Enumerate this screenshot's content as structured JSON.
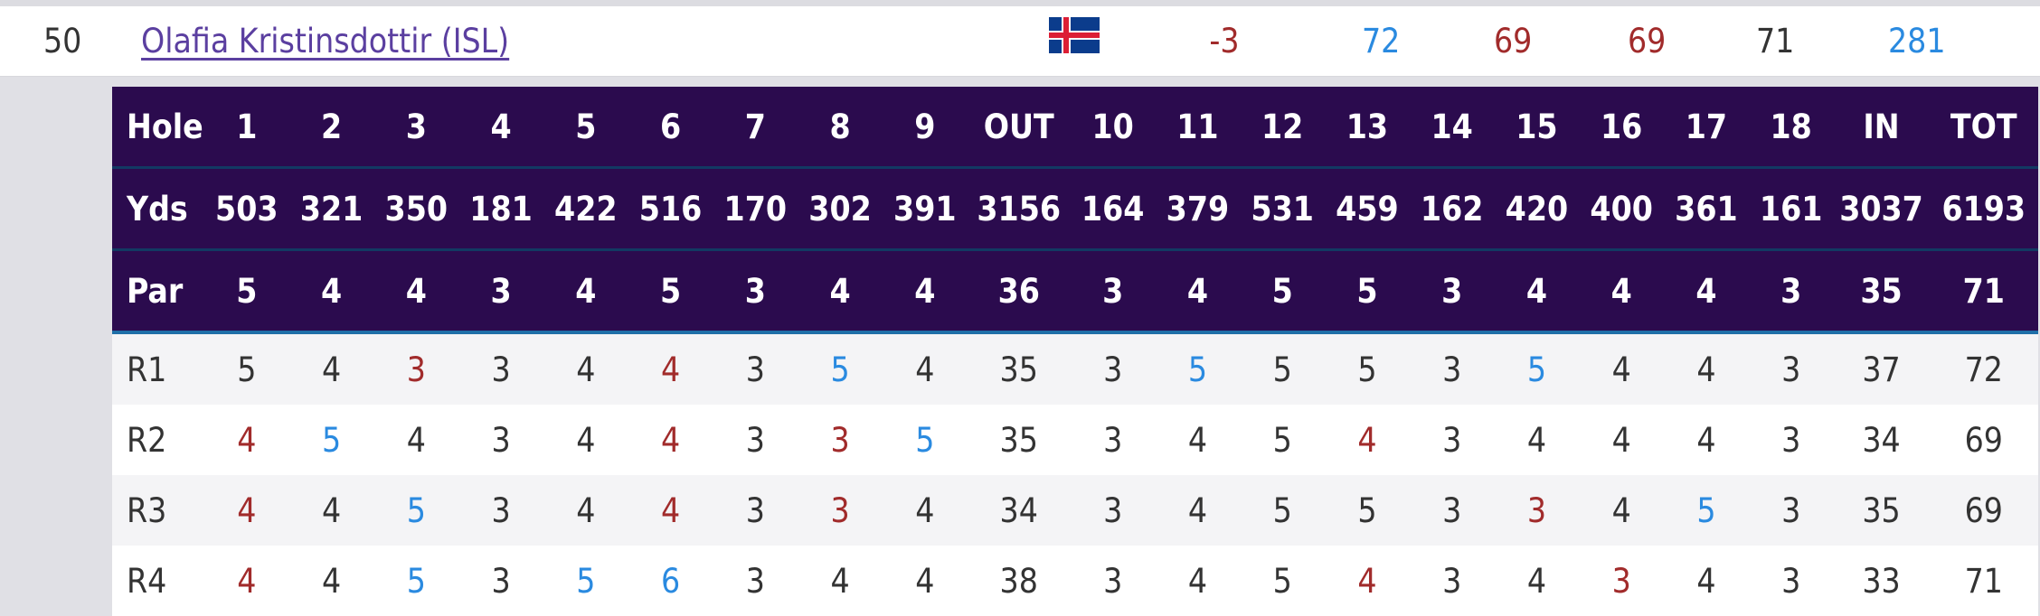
{
  "player": {
    "position": "50",
    "name": "Olafia Kristinsdottir (ISL)",
    "flag_icon": "iceland-flag-icon",
    "to_par": "-3",
    "r1": "72",
    "r2": "69",
    "r3": "69",
    "r4": "71",
    "total": "281"
  },
  "colors": {
    "header_bg": "#2b0b4e",
    "birdie": "#a12b2b",
    "bogey": "#2a8ae0",
    "par": "#333333",
    "link": "#5b3fa0"
  },
  "scorecard": {
    "hole_label": "Hole",
    "yds_label": "Yds",
    "par_label": "Par",
    "columns": [
      "1",
      "2",
      "3",
      "4",
      "5",
      "6",
      "7",
      "8",
      "9",
      "OUT",
      "10",
      "11",
      "12",
      "13",
      "14",
      "15",
      "16",
      "17",
      "18",
      "IN",
      "TOT"
    ],
    "yards": [
      "503",
      "321",
      "350",
      "181",
      "422",
      "516",
      "170",
      "302",
      "391",
      "3156",
      "164",
      "379",
      "531",
      "459",
      "162",
      "420",
      "400",
      "361",
      "161",
      "3037",
      "6193"
    ],
    "par": [
      "5",
      "4",
      "4",
      "3",
      "4",
      "5",
      "3",
      "4",
      "4",
      "36",
      "3",
      "4",
      "5",
      "5",
      "3",
      "4",
      "4",
      "4",
      "3",
      "35",
      "71"
    ],
    "rounds": [
      {
        "label": "R1",
        "scores": [
          "5",
          "4",
          "3",
          "3",
          "4",
          "4",
          "3",
          "5",
          "4",
          "35",
          "3",
          "5",
          "5",
          "5",
          "3",
          "5",
          "4",
          "4",
          "3",
          "37",
          "72"
        ]
      },
      {
        "label": "R2",
        "scores": [
          "4",
          "5",
          "4",
          "3",
          "4",
          "4",
          "3",
          "3",
          "5",
          "35",
          "3",
          "4",
          "5",
          "4",
          "3",
          "4",
          "4",
          "4",
          "3",
          "34",
          "69"
        ]
      },
      {
        "label": "R3",
        "scores": [
          "4",
          "4",
          "5",
          "3",
          "4",
          "4",
          "3",
          "3",
          "4",
          "34",
          "3",
          "4",
          "5",
          "5",
          "3",
          "3",
          "4",
          "5",
          "3",
          "35",
          "69"
        ]
      },
      {
        "label": "R4",
        "scores": [
          "4",
          "4",
          "5",
          "3",
          "5",
          "6",
          "3",
          "4",
          "4",
          "38",
          "3",
          "4",
          "5",
          "4",
          "3",
          "4",
          "3",
          "4",
          "3",
          "33",
          "71"
        ]
      }
    ]
  }
}
